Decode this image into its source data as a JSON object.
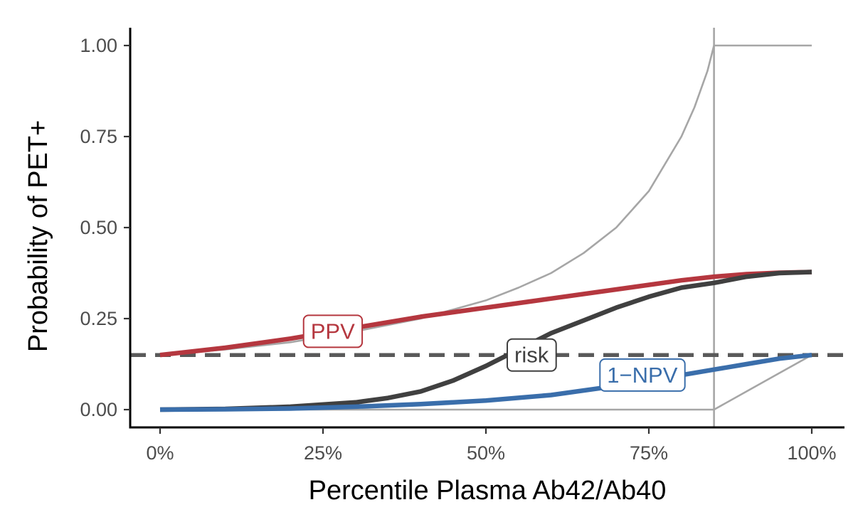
{
  "chart_data": {
    "type": "line",
    "xlabel": "Percentile Plasma Ab42/Ab40",
    "ylabel": "Probability of PET+",
    "xlim": [
      0,
      100
    ],
    "ylim": [
      -0.05,
      1.05
    ],
    "grid": false,
    "x_ticks": [
      0,
      25,
      50,
      75,
      100
    ],
    "x_tick_labels": [
      "0%",
      "25%",
      "50%",
      "75%",
      "100%"
    ],
    "y_ticks": [
      0,
      0.25,
      0.5,
      0.75,
      1.0
    ],
    "y_tick_labels": [
      "0.00",
      "0.25",
      "0.50",
      "0.75",
      "1.00"
    ],
    "reference_lines": {
      "prevalence_h": 0.15,
      "cutoff_v": 85
    },
    "colors": {
      "ppv": "#b5373f",
      "risk": "#404040",
      "npv": "#3a6eab",
      "reference": "#a6a6a6",
      "dashed": "#595959"
    },
    "series": [
      {
        "key": "ppv",
        "label": "PPV",
        "x": [
          0,
          10,
          20,
          30,
          40,
          50,
          60,
          70,
          80,
          85,
          90,
          95,
          100
        ],
        "y": [
          0.15,
          0.17,
          0.195,
          0.225,
          0.255,
          0.28,
          0.305,
          0.33,
          0.355,
          0.365,
          0.372,
          0.376,
          0.378
        ]
      },
      {
        "key": "risk",
        "label": "risk",
        "x": [
          0,
          10,
          20,
          30,
          35,
          40,
          45,
          50,
          55,
          60,
          65,
          70,
          75,
          80,
          85,
          90,
          95,
          100
        ],
        "y": [
          0.0,
          0.002,
          0.008,
          0.02,
          0.032,
          0.05,
          0.08,
          0.12,
          0.165,
          0.21,
          0.245,
          0.28,
          0.31,
          0.335,
          0.348,
          0.365,
          0.375,
          0.378
        ]
      },
      {
        "key": "npv",
        "label": "1−NPV",
        "x": [
          0,
          10,
          20,
          30,
          40,
          50,
          60,
          70,
          80,
          85,
          90,
          95,
          100
        ],
        "y": [
          0.0,
          0.001,
          0.003,
          0.008,
          0.015,
          0.025,
          0.04,
          0.065,
          0.095,
          0.11,
          0.125,
          0.14,
          0.15
        ]
      }
    ],
    "reference_curves": [
      {
        "key": "upper",
        "x": [
          0,
          10,
          20,
          30,
          40,
          50,
          55,
          60,
          65,
          70,
          75,
          80,
          82,
          84,
          85,
          85,
          90,
          95,
          100
        ],
        "y": [
          0.15,
          0.165,
          0.185,
          0.215,
          0.25,
          0.3,
          0.335,
          0.375,
          0.43,
          0.5,
          0.6,
          0.75,
          0.83,
          0.93,
          1.0,
          1.0,
          1.0,
          1.0,
          1.0
        ]
      },
      {
        "key": "lower",
        "x": [
          0,
          10,
          20,
          30,
          40,
          50,
          60,
          70,
          80,
          85,
          85,
          90,
          95,
          100
        ],
        "y": [
          0.0,
          0.0,
          0.0,
          0.0,
          0.0,
          0.0,
          0.0,
          0.0,
          0.0,
          0.0,
          0.0,
          0.05,
          0.1,
          0.15
        ]
      }
    ],
    "annotations": [
      {
        "key": "ppv",
        "text": "PPV",
        "x": 26.5,
        "y": 0.215
      },
      {
        "key": "risk",
        "text": "risk",
        "x": 57,
        "y": 0.15
      },
      {
        "key": "npv",
        "text": "1−NPV",
        "x": 74,
        "y": 0.095
      }
    ]
  }
}
